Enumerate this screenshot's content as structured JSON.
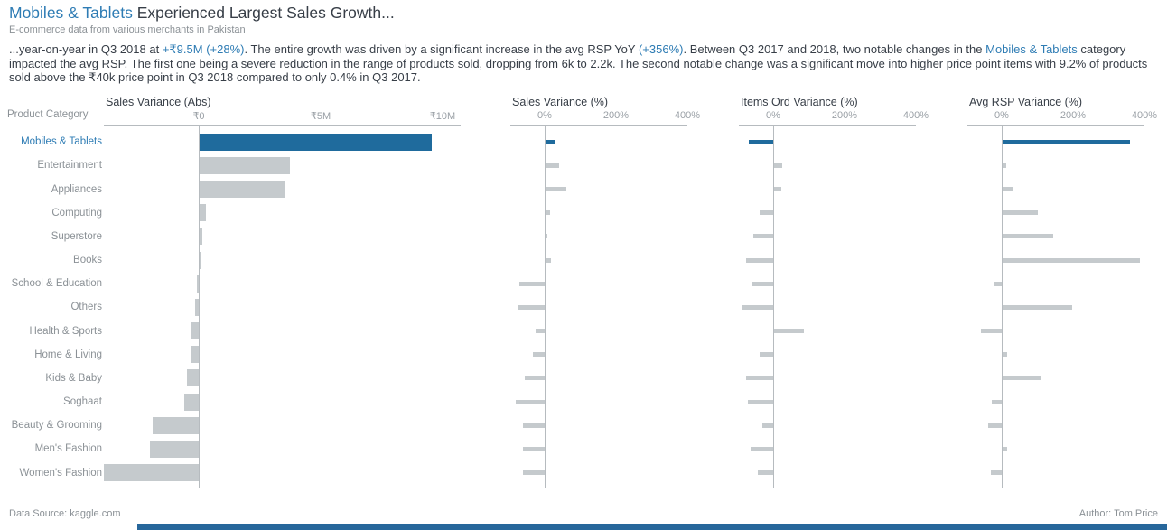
{
  "header": {
    "title_highlight": "Mobiles & Tablets",
    "title_rest": " Experienced Largest Sales Growth...",
    "subtitle": "E-commerce data from various merchants in Pakistan"
  },
  "narrative": {
    "segments": [
      {
        "text": "...year-on-year in Q3 2018 at ",
        "style": "dark"
      },
      {
        "text": "+₹9.5M",
        "style": "blue"
      },
      {
        "text": " ",
        "style": "dark"
      },
      {
        "text": "(+28%)",
        "style": "blue"
      },
      {
        "text": ". The entire growth was driven by a significant increase in the avg RSP YoY ",
        "style": "dark"
      },
      {
        "text": "(+356%)",
        "style": "blue"
      },
      {
        "text": ". Between Q3 2017 and 2018, two notable changes in the ",
        "style": "dark"
      },
      {
        "text": "Mobiles & Tablets",
        "style": "blue"
      },
      {
        "text": " category impacted the avg RSP. The first one being a severe reduction in the range of products sold, dropping from 6k to 2.2k. The second notable change was a significant move into higher price point items with 9.2% of products sold above the ₹40k price point in Q3 2018 compared to only 0.4% in Q3 2017.",
        "style": "dark"
      }
    ]
  },
  "chart_data": {
    "type": "bar",
    "orientation": "horizontal",
    "row_label_header": "Product Category",
    "highlight_category": "Mobiles & Tablets",
    "categories": [
      "Mobiles & Tablets",
      "Entertainment",
      "Appliances",
      "Computing",
      "Superstore",
      "Books",
      "School & Education",
      "Others",
      "Health & Sports",
      "Home & Living",
      "Kids & Baby",
      "Soghaat",
      "Beauty & Grooming",
      "Men's Fashion",
      "Women's Fashion"
    ],
    "panels": [
      {
        "title": "Sales Variance (Abs)",
        "unit": "₹M",
        "xlim": [
          -4,
          11
        ],
        "ticks": [
          {
            "label": "₹0",
            "value": 0
          },
          {
            "label": "₹5M",
            "value": 5
          },
          {
            "label": "₹10M",
            "value": 10
          }
        ],
        "values": [
          9.5,
          3.7,
          3.5,
          0.25,
          0.12,
          0.02,
          -0.08,
          -0.15,
          -0.28,
          -0.33,
          -0.47,
          -0.58,
          -1.9,
          -2.0,
          -3.9
        ]
      },
      {
        "title": "Sales Variance (%)",
        "unit": "%",
        "xlim": [
          -100,
          430
        ],
        "ticks": [
          {
            "label": "0%",
            "value": 0
          },
          {
            "label": "200%",
            "value": 200
          },
          {
            "label": "400%",
            "value": 400
          }
        ],
        "values": [
          28,
          37,
          58,
          13,
          6,
          14,
          -70,
          -73,
          -26,
          -33,
          -55,
          -80,
          -60,
          -60,
          -61
        ]
      },
      {
        "title": "Items Ord Variance (%)",
        "unit": "%",
        "xlim": [
          -100,
          430
        ],
        "ticks": [
          {
            "label": "0%",
            "value": 0
          },
          {
            "label": "200%",
            "value": 200
          },
          {
            "label": "400%",
            "value": 400
          }
        ],
        "values": [
          -68,
          22,
          19,
          -39,
          -55,
          -76,
          -57,
          -87,
          84,
          -38,
          -77,
          -72,
          -31,
          -63,
          -43
        ]
      },
      {
        "title": "Avg RSP Variance (%)",
        "unit": "%",
        "xlim": [
          -100,
          430
        ],
        "ticks": [
          {
            "label": "0%",
            "value": 0
          },
          {
            "label": "200%",
            "value": 200
          },
          {
            "label": "400%",
            "value": 400
          }
        ],
        "values": [
          356,
          10,
          30,
          98,
          142,
          385,
          -22,
          195,
          -58,
          12,
          108,
          -27,
          -39,
          13,
          -30
        ]
      }
    ],
    "legend_position": "none",
    "grid": false
  },
  "footer": {
    "source": "Data Source: kaggle.com",
    "author": "Author: Tom Price"
  },
  "colors": {
    "accent_blue": "#2e7cb4",
    "bar_blue": "#1f6b9d",
    "bar_gray": "#c5cacd",
    "text_dark": "#373e47",
    "text_gray": "#8b9196",
    "tick_gray": "#9aa0a6",
    "axis_line": "#b6bbbf",
    "bottom_strip": "#27679b"
  }
}
